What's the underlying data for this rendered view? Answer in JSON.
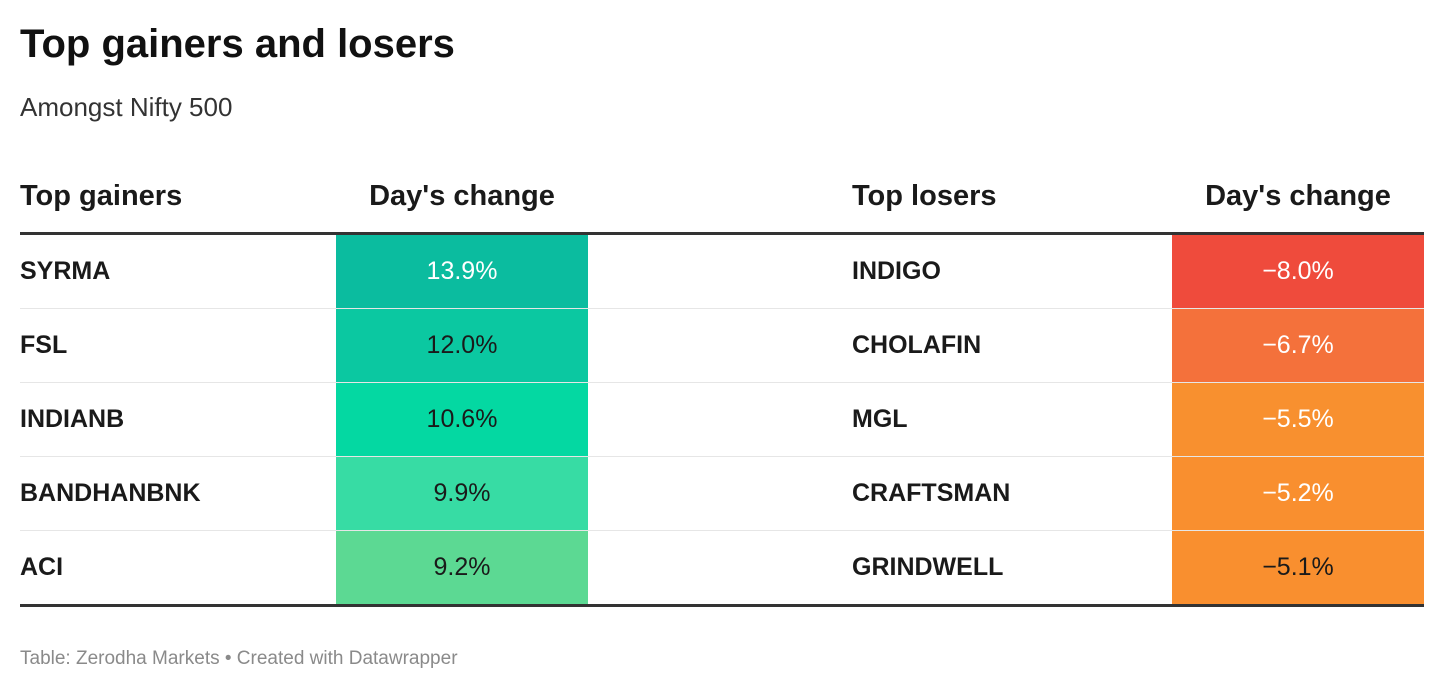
{
  "title": "Top gainers and losers",
  "subtitle": "Amongst Nifty 500",
  "footer": "Table: Zerodha Markets • Created with Datawrapper",
  "colors": {
    "gainers": [
      "#0bbc9f",
      "#0bc8a1",
      "#04d8a2",
      "#37dca4",
      "#5cd993"
    ],
    "losers": [
      "#ef4b3c",
      "#f4713b",
      "#f8902f",
      "#f98f2f",
      "#f98f2f"
    ],
    "gainers_text": [
      "#ffffff",
      "#1a1a1a",
      "#1a1a1a",
      "#1a1a1a",
      "#1a1a1a"
    ],
    "losers_text": [
      "#ffffff",
      "#ffffff",
      "#ffffff",
      "#ffffff",
      "#1a1a1a"
    ]
  },
  "chart_data": {
    "type": "table",
    "title": "Top gainers and losers",
    "subtitle": "Amongst Nifty 500",
    "columns": [
      "Top gainers",
      "Day's change",
      "Top losers",
      "Day's change"
    ],
    "gainers": [
      {
        "name": "SYRMA",
        "change": "13.9%",
        "value": 13.9
      },
      {
        "name": "FSL",
        "change": "12.0%",
        "value": 12.0
      },
      {
        "name": "INDIANB",
        "change": "10.6%",
        "value": 10.6
      },
      {
        "name": "BANDHANBNK",
        "change": "9.9%",
        "value": 9.9
      },
      {
        "name": "ACI",
        "change": "9.2%",
        "value": 9.2
      }
    ],
    "losers": [
      {
        "name": "INDIGO",
        "change": "−8.0%",
        "value": -8.0
      },
      {
        "name": "CHOLAFIN",
        "change": "−6.7%",
        "value": -6.7
      },
      {
        "name": "MGL",
        "change": "−5.5%",
        "value": -5.5
      },
      {
        "name": "CRAFTSMAN",
        "change": "−5.2%",
        "value": -5.2
      },
      {
        "name": "GRINDWELL",
        "change": "−5.1%",
        "value": -5.1
      }
    ]
  }
}
